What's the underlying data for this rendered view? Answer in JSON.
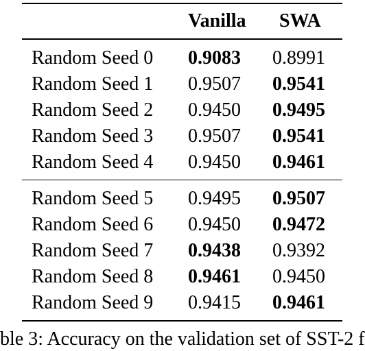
{
  "table": {
    "headers": [
      "",
      "Vanilla",
      "SWA"
    ],
    "group1": [
      {
        "label": "Random Seed 0",
        "vanilla": "0.9083",
        "swa": "0.8991",
        "bold": "vanilla"
      },
      {
        "label": "Random Seed 1",
        "vanilla": "0.9507",
        "swa": "0.9541",
        "bold": "swa"
      },
      {
        "label": "Random Seed 2",
        "vanilla": "0.9450",
        "swa": "0.9495",
        "bold": "swa"
      },
      {
        "label": "Random Seed 3",
        "vanilla": "0.9507",
        "swa": "0.9541",
        "bold": "swa"
      },
      {
        "label": "Random Seed 4",
        "vanilla": "0.9450",
        "swa": "0.9461",
        "bold": "swa"
      }
    ],
    "group2": [
      {
        "label": "Random Seed 5",
        "vanilla": "0.9495",
        "swa": "0.9507",
        "bold": "swa"
      },
      {
        "label": "Random Seed 6",
        "vanilla": "0.9450",
        "swa": "0.9472",
        "bold": "swa"
      },
      {
        "label": "Random Seed 7",
        "vanilla": "0.9438",
        "swa": "0.9392",
        "bold": "vanilla"
      },
      {
        "label": "Random Seed 8",
        "vanilla": "0.9461",
        "swa": "0.9450",
        "bold": "vanilla"
      },
      {
        "label": "Random Seed 9",
        "vanilla": "0.9415",
        "swa": "0.9461",
        "bold": "swa"
      }
    ]
  },
  "caption": "ble 3: Accuracy on the validation set of SST-2 f"
}
